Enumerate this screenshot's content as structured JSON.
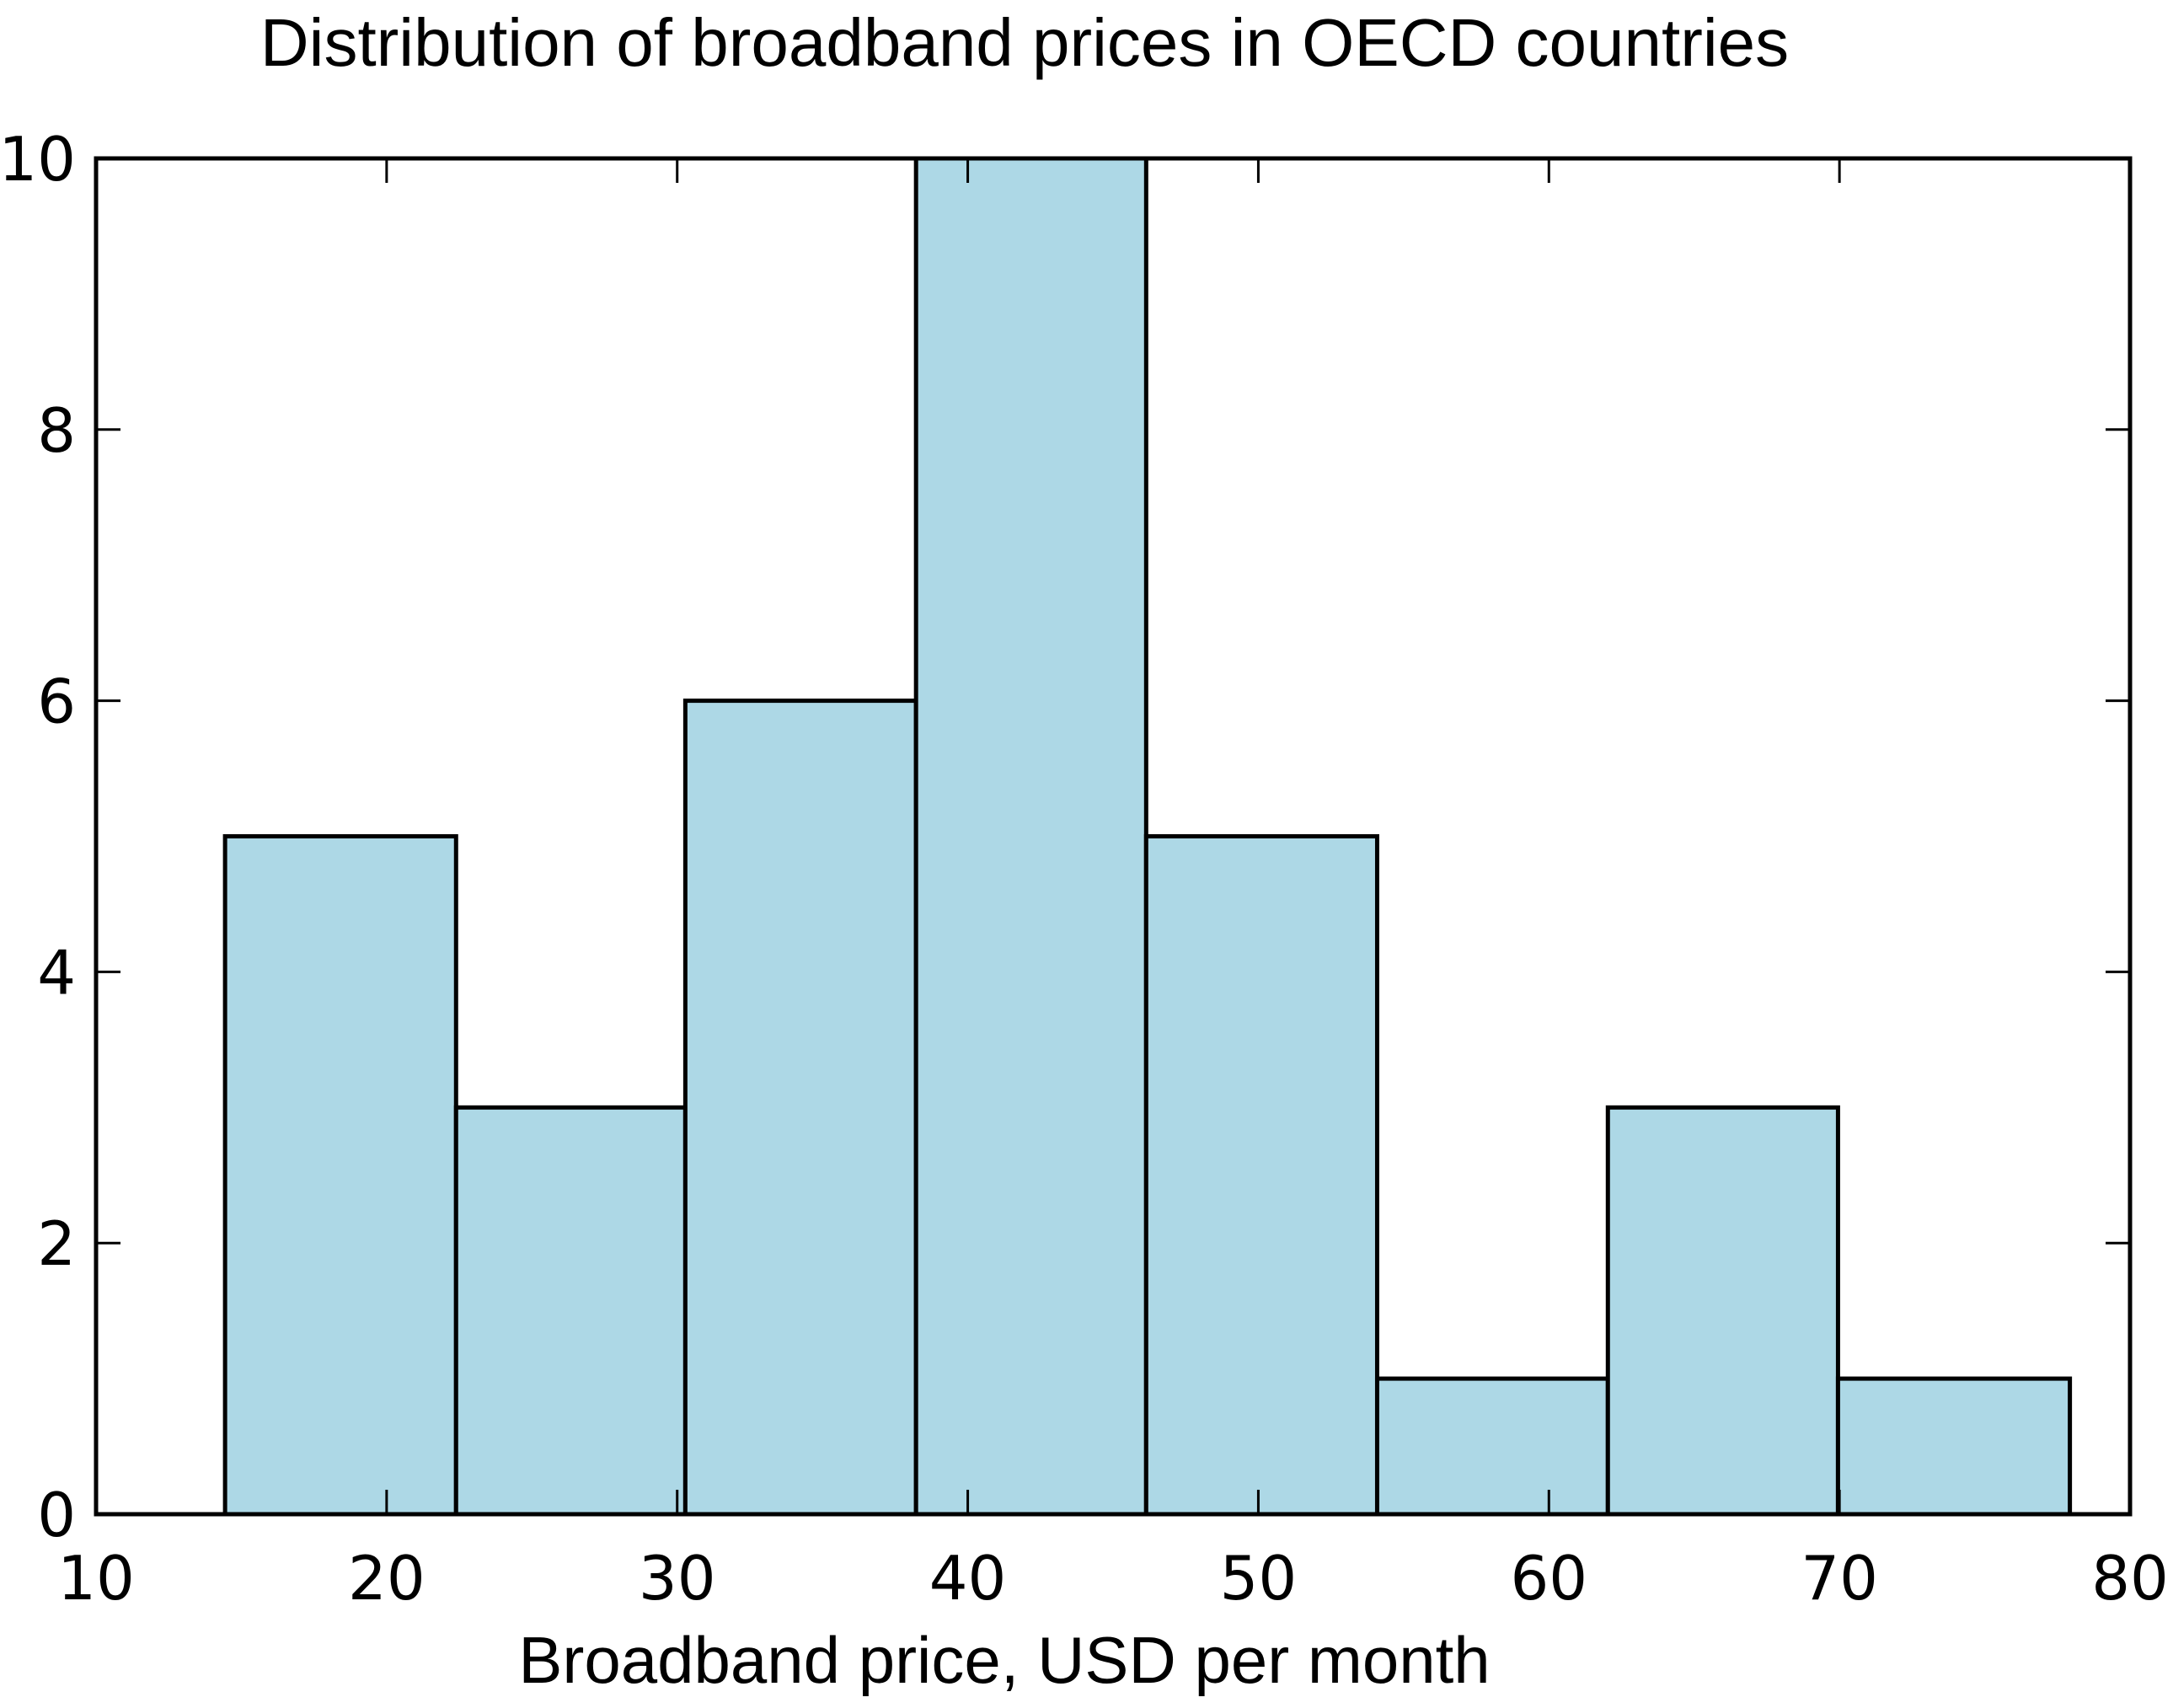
{
  "chart_data": {
    "type": "bar",
    "subtype": "histogram",
    "title": "Distribution of broadband prices in OECD countries",
    "xlabel": "Broadband price, USD per month",
    "ylabel": "",
    "xlim": [
      10,
      80
    ],
    "ylim": [
      0,
      10
    ],
    "xticks": [
      10,
      20,
      30,
      40,
      50,
      60,
      70,
      80
    ],
    "yticks": [
      0,
      2,
      4,
      6,
      8,
      10
    ],
    "grid": false,
    "legend": null,
    "bin_edges": [
      14.44,
      22.39,
      30.28,
      38.22,
      46.14,
      54.09,
      62.03,
      69.95,
      77.93
    ],
    "categories": [
      "14.4–22.4",
      "22.4–30.3",
      "30.3–38.2",
      "38.2–46.1",
      "46.1–54.1",
      "54.1–62.0",
      "62.0–70.0",
      "70.0–77.9"
    ],
    "values": [
      5,
      3,
      6,
      10,
      5,
      1,
      3,
      1
    ],
    "bar_color": "#add8e6",
    "edge_color": "#000000"
  }
}
